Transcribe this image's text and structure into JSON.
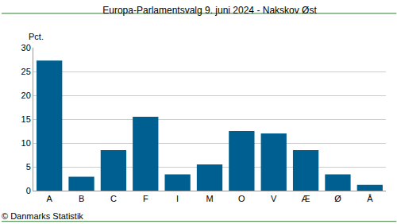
{
  "chart_data": {
    "type": "bar",
    "title": "Europa-Parlamentsvalg 9. juni 2024 - Nakskov Øst",
    "ylabel": "Pct.",
    "annotations": [
      "© Danmarks Statistik"
    ],
    "categories": [
      "A",
      "B",
      "C",
      "F",
      "I",
      "M",
      "O",
      "V",
      "Æ",
      "Ø",
      "Å"
    ],
    "values": [
      27.3,
      2.9,
      8.5,
      15.5,
      3.4,
      5.5,
      12.5,
      12.0,
      8.5,
      3.4,
      1.2
    ],
    "color": "#005f91",
    "ylim": [
      0,
      30
    ],
    "yticks": [
      0,
      5,
      10,
      15,
      20,
      25,
      30
    ],
    "grid": true
  }
}
